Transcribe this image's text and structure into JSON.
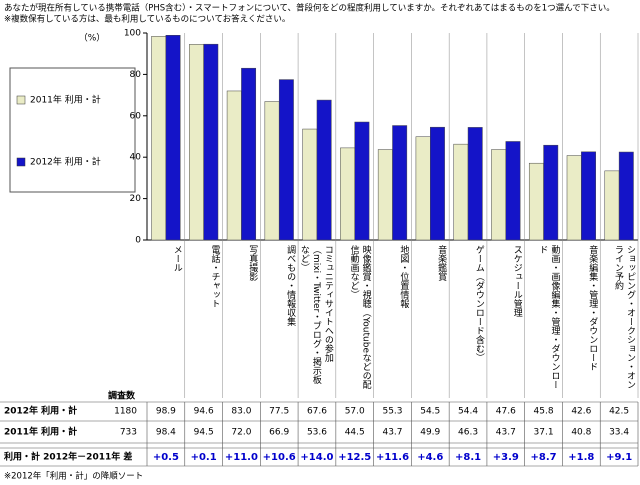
{
  "chart_data": {
    "type": "bar",
    "title": "あなたが現在所有している携帯電話（PHS含む）・スマートフォンについて、普段何をどの程度利用していますか。それぞれあてはまるものを1つ選んで下さい。",
    "subtitle": "※複数保有している方は、最も利用しているものについてお答えください。",
    "y_unit": "（%）",
    "categories": [
      "メール",
      "電話・チャット",
      "写真撮影",
      "調べもの・情報収集",
      "コミュニティサイトへの参加（mixi・Twitter・ブログ・掲示板など）",
      "映像鑑賞・視聴（Youtubeなどの配信動画など）",
      "地図・位置情報",
      "音楽鑑賞",
      "ゲーム（ダウンロード含む）",
      "スケジュール管理",
      "動画・画像編集・管理・ダウンロード",
      "音楽編集・管理・ダウンロード",
      "ショッピング・オークション・オンライン予約"
    ],
    "series": [
      {
        "name": "2011年 利用・計",
        "color": "#eaecc6",
        "n": 733,
        "values": [
          98.4,
          94.5,
          72,
          66.9,
          53.6,
          44.5,
          43.7,
          49.9,
          46.3,
          43.7,
          37.1,
          40.8,
          33.4
        ],
        "value_labels": [
          "98.4",
          "94.5",
          "72.0",
          "66.9",
          "53.6",
          "44.5",
          "43.7",
          "49.9",
          "46.3",
          "43.7",
          "37.1",
          "40.8",
          "33.4"
        ]
      },
      {
        "name": "2012年 利用・計",
        "color": "#1414c8",
        "n": 1180,
        "values": [
          98.9,
          94.6,
          83,
          77.5,
          67.6,
          57,
          55.3,
          54.5,
          54.4,
          47.6,
          45.8,
          42.6,
          42.5
        ],
        "value_labels": [
          "98.9",
          "94.6",
          "83.0",
          "77.5",
          "67.6",
          "57.0",
          "55.3",
          "54.5",
          "54.4",
          "47.6",
          "45.8",
          "42.6",
          "42.5"
        ]
      }
    ],
    "ylim": [
      0,
      100
    ],
    "yticks": [
      0,
      20,
      40,
      60,
      80,
      100
    ],
    "grid": false,
    "table": {
      "n_header": "調査数",
      "difference_label": "利用・計 2012年－2011年 差",
      "difference_color": "#0000cc",
      "differences": [
        "+0.5",
        "+0.1",
        "+11.0",
        "+10.6",
        "+14.0",
        "+12.5",
        "+11.6",
        "+4.6",
        "+8.1",
        "+3.9",
        "+8.7",
        "+1.8",
        "+9.1"
      ]
    },
    "footnote": "※2012年「利用・計」の降順ソート"
  }
}
